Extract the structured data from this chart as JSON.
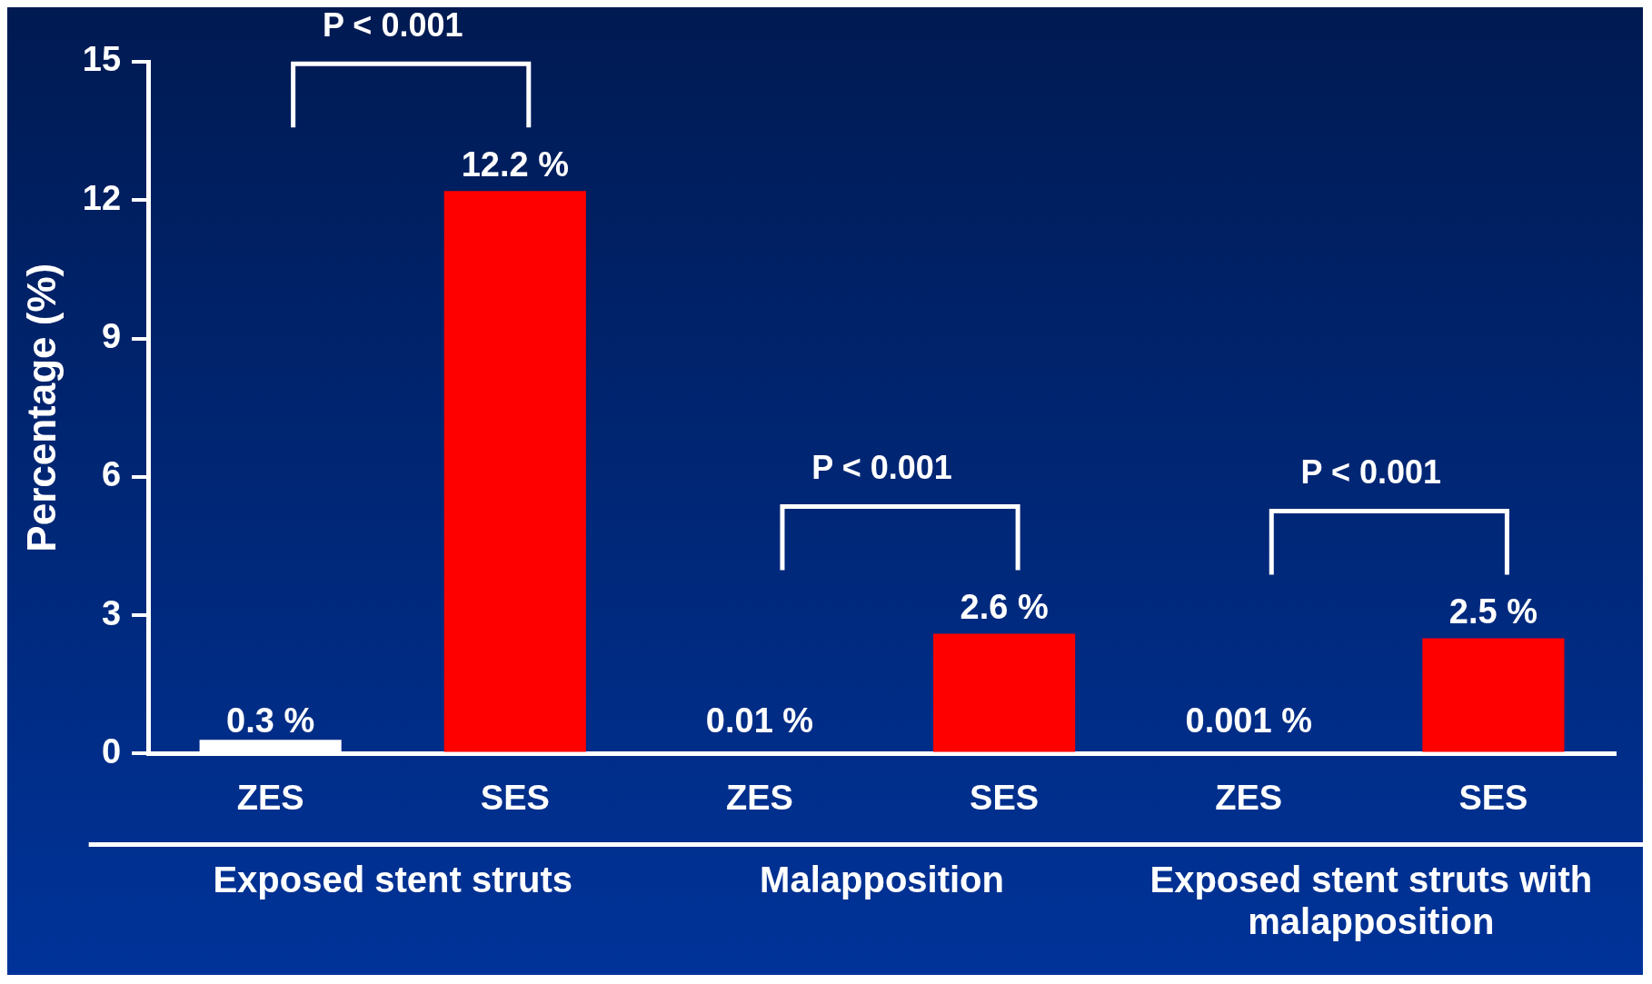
{
  "chart_data": {
    "type": "bar",
    "ylabel": "Percentage (%)",
    "categories": [
      "ZES",
      "SES",
      "ZES",
      "SES",
      "ZES",
      "SES"
    ],
    "values": [
      0.3,
      12.2,
      0.01,
      2.6,
      0.001,
      2.5
    ],
    "colors": [
      "#ffffff",
      "#ff0000",
      "#ffffff",
      "#ff0000",
      "#ffffff",
      "#ff0000"
    ],
    "value_labels": [
      "0.3 %",
      "12.2 %",
      "0.01 %",
      "2.6 %",
      "0.001 %",
      "2.5 %"
    ],
    "ylim": [
      0,
      15
    ],
    "yticks": [
      0,
      3,
      6,
      9,
      12,
      15
    ],
    "grid": false,
    "legend": false,
    "annotations": [
      "P < 0.001",
      "P < 0.001",
      "P < 0.001",
      "Exposed stent struts",
      "Malapposition",
      "Exposed stent struts with malapposition"
    ]
  }
}
